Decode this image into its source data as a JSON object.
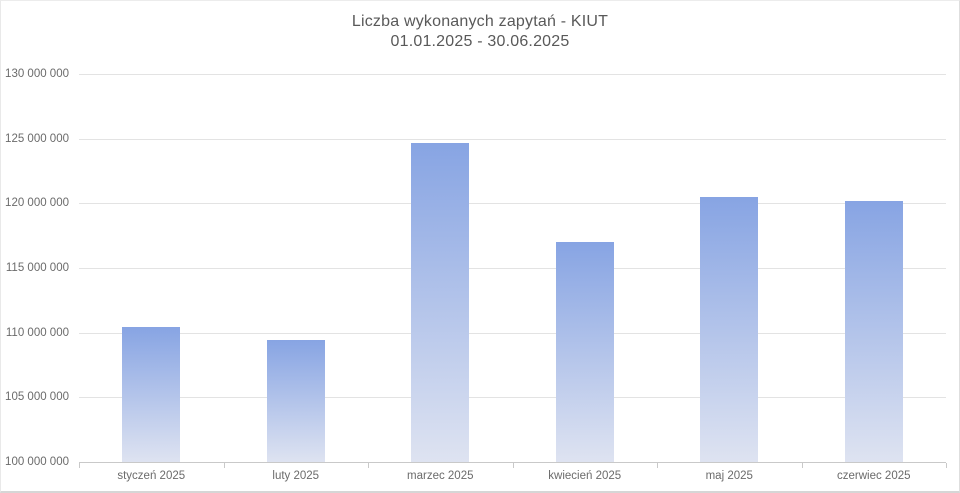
{
  "title": {
    "line1": "Liczba wykonanych zapytań - KIUT",
    "line2": "01.01.2025 - 30.06.2025"
  },
  "chart_data": {
    "type": "bar",
    "title": "Liczba wykonanych zapytań - KIUT 01.01.2025 - 30.06.2025",
    "categories": [
      "styczeń 2025",
      "luty 2025",
      "marzec 2025",
      "kwiecień 2025",
      "maj 2025",
      "czerwiec 2025"
    ],
    "values": [
      110400000,
      109400000,
      124700000,
      117000000,
      120500000,
      120200000
    ],
    "xlabel": "",
    "ylabel": "",
    "ylim": [
      100000000,
      130000000
    ],
    "ytick_step": 5000000,
    "ytick_labels": [
      "100 000 000",
      "105 000 000",
      "110 000 000",
      "115 000 000",
      "120 000 000",
      "125 000 000",
      "130 000 000"
    ],
    "grid": true,
    "legend": "none",
    "colors": {
      "bar_gradient_top": "#87a4e3",
      "bar_gradient_bottom": "#dee3f1",
      "gridline": "#e3e3e3",
      "axis_line": "#c9c9c9",
      "title_text": "#595959",
      "tick_text": "#6b6b6b"
    }
  }
}
